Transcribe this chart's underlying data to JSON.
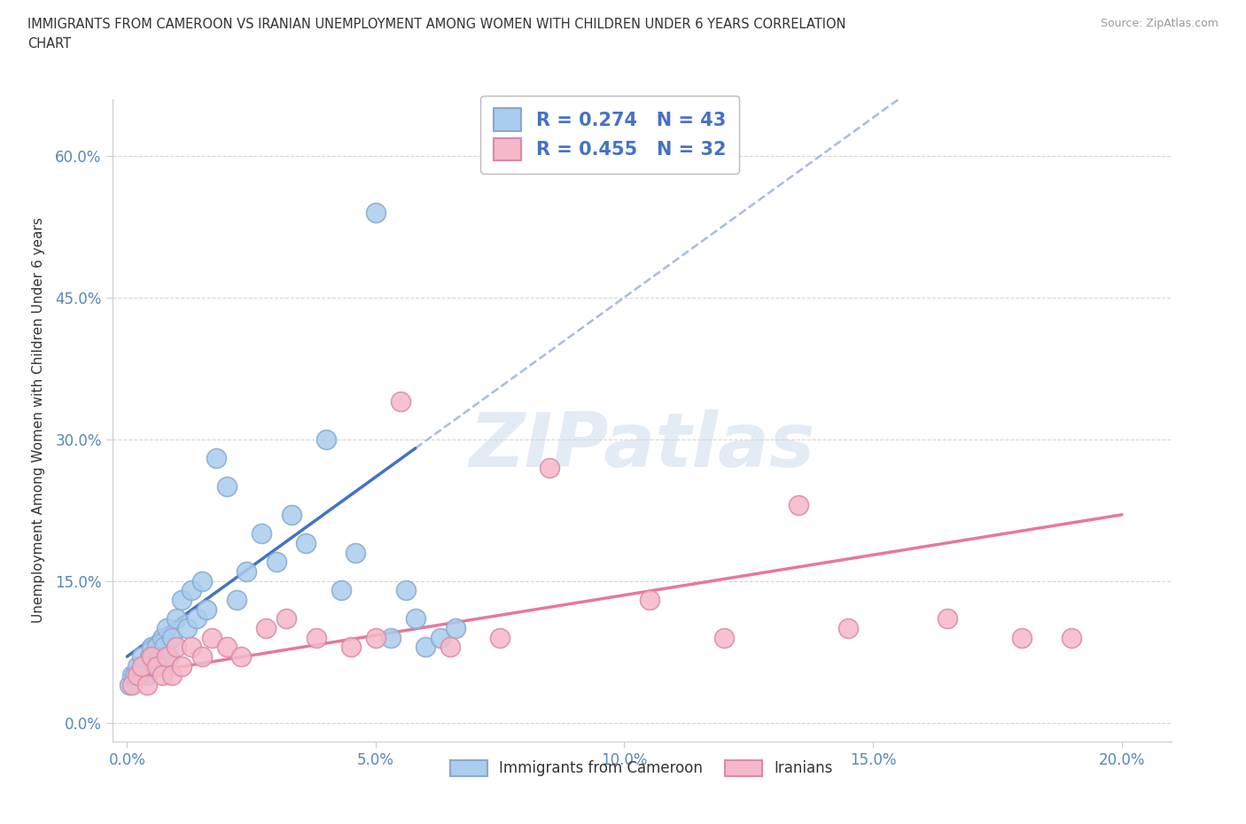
{
  "title_line1": "IMMIGRANTS FROM CAMEROON VS IRANIAN UNEMPLOYMENT AMONG WOMEN WITH CHILDREN UNDER 6 YEARS CORRELATION",
  "title_line2": "CHART",
  "source": "Source: ZipAtlas.com",
  "ylabel": "Unemployment Among Women with Children Under 6 years",
  "xlabel_ticks": [
    "0.0%",
    "5.0%",
    "10.0%",
    "15.0%",
    "20.0%"
  ],
  "xlabel_vals": [
    0,
    5,
    10,
    15,
    20
  ],
  "ylabel_ticks": [
    "0.0%",
    "15.0%",
    "30.0%",
    "45.0%",
    "60.0%"
  ],
  "ylabel_vals": [
    0,
    15,
    30,
    45,
    60
  ],
  "cameroon_color": "#aaccee",
  "iranian_color": "#f5b8c8",
  "cameroon_edge": "#88aacc",
  "iranian_edge": "#dd88aa",
  "trend_cameroon_color": "#4472c4",
  "trend_iranian_color": "#e87898",
  "trend_iranian_dashed_color": "#aaccee",
  "R_cameroon": "0.274",
  "N_cameroon": "43",
  "R_iranian": "0.455",
  "N_iranian": "32",
  "watermark": "ZIPatlas",
  "watermark_color": "#c8d8ea",
  "legend_color": "#4472c4",
  "cameroon_x": [
    0.05,
    0.1,
    0.15,
    0.2,
    0.25,
    0.3,
    0.35,
    0.4,
    0.45,
    0.5,
    0.55,
    0.6,
    0.65,
    0.7,
    0.75,
    0.8,
    0.85,
    0.9,
    1.0,
    1.1,
    1.2,
    1.3,
    1.4,
    1.5,
    1.6,
    1.8,
    2.0,
    2.2,
    2.4,
    2.7,
    3.0,
    3.3,
    3.6,
    4.0,
    4.3,
    4.6,
    5.0,
    5.3,
    5.6,
    5.8,
    6.0,
    6.3,
    6.6
  ],
  "cameroon_y": [
    4,
    5,
    5,
    6,
    5,
    7,
    6,
    5,
    7,
    8,
    6,
    8,
    7,
    9,
    8,
    10,
    7,
    9,
    11,
    13,
    10,
    14,
    11,
    15,
    12,
    28,
    25,
    13,
    16,
    20,
    17,
    22,
    19,
    30,
    14,
    18,
    54,
    9,
    14,
    11,
    8,
    9,
    10
  ],
  "iranian_x": [
    0.1,
    0.2,
    0.3,
    0.4,
    0.5,
    0.6,
    0.7,
    0.8,
    0.9,
    1.0,
    1.1,
    1.3,
    1.5,
    1.7,
    2.0,
    2.3,
    2.8,
    3.2,
    3.8,
    4.5,
    5.0,
    5.5,
    6.5,
    7.5,
    8.5,
    10.5,
    12.0,
    13.5,
    14.5,
    16.5,
    18.0,
    19.0
  ],
  "iranian_y": [
    4,
    5,
    6,
    4,
    7,
    6,
    5,
    7,
    5,
    8,
    6,
    8,
    7,
    9,
    8,
    7,
    10,
    11,
    9,
    8,
    9,
    34,
    8,
    9,
    27,
    13,
    9,
    23,
    10,
    11,
    9,
    9
  ]
}
